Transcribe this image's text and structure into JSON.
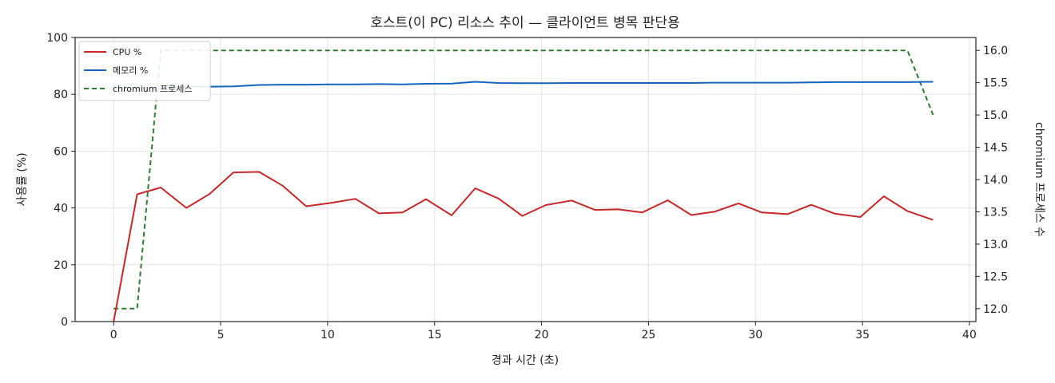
{
  "chart_data": {
    "type": "line",
    "title": "호스트(이 PC) 리소스 추이 — 클라이언트 병목 판단용",
    "xlabel": "경과 시간 (초)",
    "ylabel": "사용률 (%)",
    "y2label": "chromium 프로세스 수",
    "xlim": [
      -1.8,
      40.3
    ],
    "ylim": [
      0,
      100
    ],
    "y2lim": [
      11.8,
      16.2
    ],
    "x_ticks": [
      0,
      5,
      10,
      15,
      20,
      25,
      30,
      35,
      40
    ],
    "y_ticks": [
      0,
      20,
      40,
      60,
      80,
      100
    ],
    "y2_ticks": [
      12.0,
      12.5,
      13.0,
      13.5,
      14.0,
      14.5,
      15.0,
      15.5,
      16.0
    ],
    "y2_tick_labels": [
      "12.0",
      "12.5",
      "13.0",
      "13.5",
      "14.0",
      "14.5",
      "15.0",
      "15.5",
      "16.0"
    ],
    "grid": true,
    "legend": "top-left",
    "series": [
      {
        "name": "CPU %",
        "axis": "left",
        "color": "#c62828",
        "style": "solid",
        "x": [
          0,
          1.1,
          2.2,
          3.4,
          4.5,
          5.6,
          6.8,
          7.9,
          9.0,
          10.1,
          11.3,
          12.4,
          13.5,
          14.6,
          15.8,
          16.9,
          18.0,
          19.1,
          20.2,
          21.4,
          22.5,
          23.6,
          24.7,
          25.9,
          27.0,
          28.1,
          29.2,
          30.3,
          31.5,
          32.6,
          33.7,
          34.9,
          36.0,
          37.1,
          38.3
        ],
        "values": [
          0,
          44.8,
          47.2,
          40.0,
          45.0,
          52.5,
          52.7,
          47.8,
          40.6,
          41.7,
          43.2,
          38.1,
          38.4,
          43.1,
          37.4,
          46.9,
          43.3,
          37.2,
          41.0,
          42.6,
          39.3,
          39.5,
          38.4,
          42.7,
          37.5,
          38.7,
          41.6,
          38.4,
          37.8,
          41.1,
          38.0,
          36.8,
          44.1,
          38.9,
          35.8
        ]
      },
      {
        "name": "메모리 %",
        "axis": "left",
        "color": "#1565c0",
        "style": "solid",
        "x": [
          0,
          1.1,
          2.2,
          3.4,
          4.5,
          5.6,
          6.8,
          7.9,
          9.0,
          10.1,
          11.3,
          12.4,
          13.5,
          14.6,
          15.8,
          16.9,
          18.0,
          19.1,
          20.2,
          21.4,
          22.5,
          23.6,
          24.7,
          25.9,
          27.0,
          28.1,
          29.2,
          30.3,
          31.5,
          32.6,
          33.7,
          34.9,
          36.0,
          37.1,
          38.3
        ],
        "values": [
          82.0,
          82.3,
          82.5,
          82.6,
          82.7,
          82.8,
          83.3,
          83.4,
          83.4,
          83.5,
          83.5,
          83.6,
          83.5,
          83.7,
          83.8,
          84.4,
          84.0,
          83.9,
          83.9,
          84.0,
          84.0,
          84.0,
          84.0,
          84.0,
          84.0,
          84.1,
          84.1,
          84.1,
          84.1,
          84.2,
          84.3,
          84.3,
          84.3,
          84.3,
          84.4
        ]
      },
      {
        "name": "chromium 프로세스",
        "axis": "right",
        "color": "#2e7d32",
        "style": "dashed",
        "x": [
          0,
          1.1,
          2.2,
          3.4,
          37.1,
          38.3
        ],
        "values": [
          12,
          12,
          16,
          16,
          16,
          15
        ]
      }
    ]
  }
}
